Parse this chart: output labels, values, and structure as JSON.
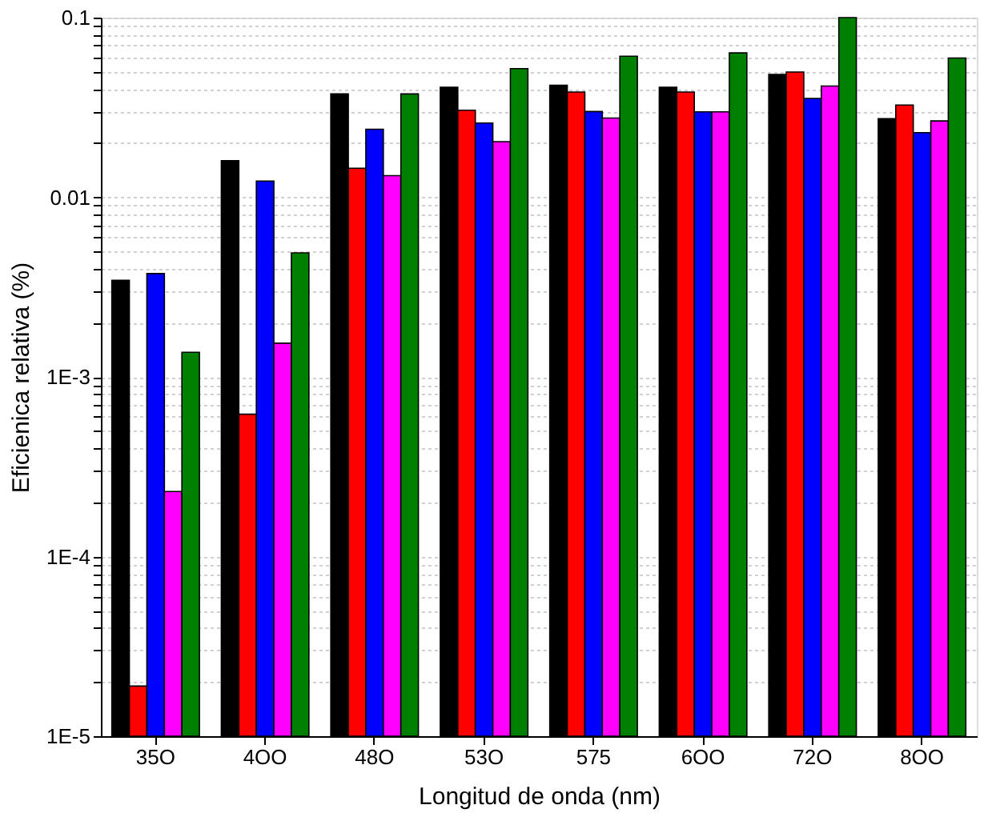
{
  "chart_data": {
    "type": "bar",
    "xlabel": "Longitud de onda (nm)",
    "ylabel": "Eficienica relativa (%)",
    "categories": [
      "35O",
      "4OO",
      "48O",
      "53O",
      "575",
      "6OO",
      "72O",
      "8OO"
    ],
    "series": [
      {
        "color": "#000000",
        "values": [
          0.00345,
          0.016,
          0.0376,
          0.041,
          0.042,
          0.041,
          0.0483,
          0.0274
        ]
      },
      {
        "color": "#ff0000",
        "values": [
          1.9e-05,
          0.00062,
          0.0145,
          0.0305,
          0.0385,
          0.0385,
          0.0498,
          0.0326
        ]
      },
      {
        "color": "#0000ff",
        "values": [
          0.00376,
          0.0123,
          0.0239,
          0.0259,
          0.03,
          0.0299,
          0.0355,
          0.0229
        ]
      },
      {
        "color": "#ff00ff",
        "values": [
          0.00023,
          0.00154,
          0.0132,
          0.0204,
          0.0276,
          0.0299,
          0.0416,
          0.0266
        ]
      },
      {
        "color": "#008000",
        "values": [
          0.00137,
          0.0049,
          0.0376,
          0.052,
          0.061,
          0.0636,
          0.1,
          0.0596
        ]
      }
    ],
    "log": true,
    "ylim": [
      1e-05,
      0.1
    ],
    "yticks": [
      {
        "value": 1e-05,
        "label": "1E-5"
      },
      {
        "value": 2e-05,
        "label": null
      },
      {
        "value": 3e-05,
        "label": null
      },
      {
        "value": 4e-05,
        "label": null
      },
      {
        "value": 5e-05,
        "label": null
      },
      {
        "value": 6e-05,
        "label": null
      },
      {
        "value": 7e-05,
        "label": null
      },
      {
        "value": 8e-05,
        "label": null
      },
      {
        "value": 9e-05,
        "label": null
      },
      {
        "value": 0.0001,
        "label": "1E-4"
      },
      {
        "value": 0.0002,
        "label": null
      },
      {
        "value": 0.0003,
        "label": null
      },
      {
        "value": 0.0004,
        "label": null
      },
      {
        "value": 0.0005,
        "label": null
      },
      {
        "value": 0.0006,
        "label": null
      },
      {
        "value": 0.0007,
        "label": null
      },
      {
        "value": 0.0008,
        "label": null
      },
      {
        "value": 0.0009,
        "label": null
      },
      {
        "value": 0.001,
        "label": "1E-3"
      },
      {
        "value": 0.002,
        "label": null
      },
      {
        "value": 0.003,
        "label": null
      },
      {
        "value": 0.004,
        "label": null
      },
      {
        "value": 0.005,
        "label": null
      },
      {
        "value": 0.006,
        "label": null
      },
      {
        "value": 0.007,
        "label": null
      },
      {
        "value": 0.008,
        "label": null
      },
      {
        "value": 0.009,
        "label": null
      },
      0.01,
      {
        "value": 0.02,
        "label": null
      },
      {
        "value": 0.03,
        "label": null
      },
      {
        "value": 0.04,
        "label": null
      },
      {
        "value": 0.05,
        "label": null
      },
      {
        "value": 0.06,
        "label": null
      },
      {
        "value": 0.07,
        "label": null
      },
      {
        "value": 0.08,
        "label": null
      },
      {
        "value": 0.09,
        "label": null
      },
      0.1
    ],
    "grid": "y",
    "legend": false
  }
}
